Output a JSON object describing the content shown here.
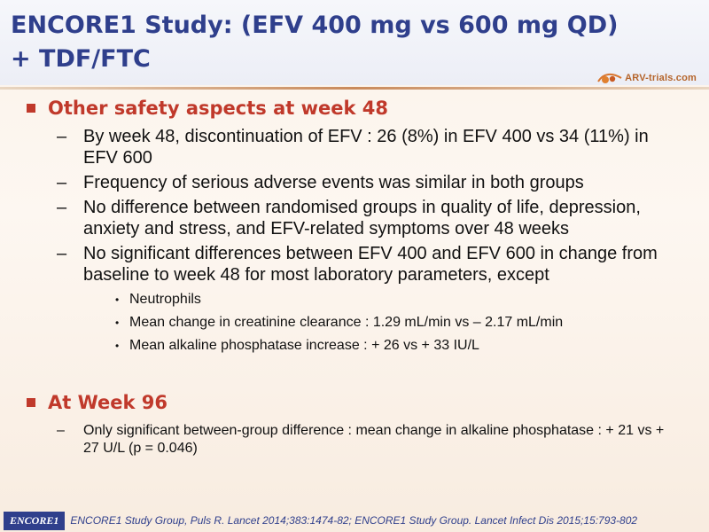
{
  "header": {
    "title_line1": "ENCORE1 Study: (EFV 400 mg vs 600 mg QD)",
    "title_line2": "+ TDF/FTC",
    "logo_text": "ARV-trials.com"
  },
  "sections": [
    {
      "heading": "Other safety aspects at week 48",
      "items": [
        "By week 48, discontinuation of EFV : 26 (8%) in EFV 400 vs 34 (11%) in EFV 600",
        "Frequency of serious adverse events was similar in both groups",
        "No difference between randomised groups in quality of life, depression, anxiety and stress, and EFV-related symptoms over 48 weeks",
        "No significant differences between EFV 400 and EFV 600 in change from baseline to week 48 for most laboratory parameters, except"
      ],
      "subitems": [
        "Neutrophils",
        "Mean change in creatinine clearance : 1.29 mL/min vs – 2.17 mL/min",
        "Mean alkaline phosphatase increase : + 26 vs + 33 IU/L"
      ]
    },
    {
      "heading": "At Week 96",
      "items": [
        "Only significant between-group difference : mean change in alkaline phosphatase : + 21 vs + 27 U/L (p = 0.046)"
      ]
    }
  ],
  "footer": {
    "tag": "ENCORE1",
    "reference": "ENCORE1 Study Group, Puls R. Lancet 2014;383:1474-82; ENCORE1 Study Group. Lancet Infect Dis 2015;15:793-802"
  },
  "icons": {
    "bullet_level1": "square-bullet-icon",
    "bullet_level2": "dash",
    "bullet_level3": "dot-bullet-icon"
  },
  "colors": {
    "title": "#2f3f8c",
    "heading": "#c0392b",
    "logo": "#b5642a"
  }
}
